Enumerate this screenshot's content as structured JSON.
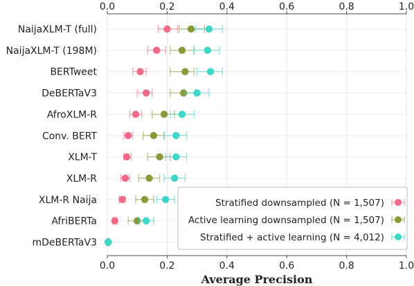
{
  "chart_data": {
    "type": "scatter",
    "xlabel": "Average Precision",
    "xlim": [
      0,
      1.0
    ],
    "xticks": [
      "0.0",
      "0.2",
      "0.4",
      "0.6",
      "0.8",
      "1.0"
    ],
    "grid": true,
    "legend_position": "bottom-right",
    "categories": [
      "NaijaXLM-T (full)",
      "NaijaXLM-T (198M)",
      "BERTweet",
      "DeBERTaV3",
      "AfroXLM-R",
      "Conv. BERT",
      "XLM-T",
      "XLM-R",
      "XLM-R Naija",
      "AfriBERTa",
      "mDeBERTaV3"
    ],
    "series": [
      {
        "name": "Stratified downsampled (N = 1,507)",
        "color": "#ee6a86",
        "values": [
          0.2,
          0.165,
          0.11,
          0.13,
          0.095,
          0.07,
          0.065,
          0.06,
          0.05,
          0.025,
          0.003
        ],
        "err_low": [
          0.17,
          0.135,
          0.085,
          0.1,
          0.075,
          0.055,
          0.055,
          0.045,
          0.04,
          0.018,
          0.0
        ],
        "err_high": [
          0.235,
          0.195,
          0.13,
          0.15,
          0.115,
          0.085,
          0.08,
          0.075,
          0.06,
          0.032,
          0.006
        ]
      },
      {
        "name": "Active learning downsampled (N = 1,507)",
        "color": "#8a9a3b",
        "values": [
          0.28,
          0.25,
          0.26,
          0.255,
          0.19,
          0.155,
          0.175,
          0.14,
          0.125,
          0.1,
          0.003
        ],
        "err_low": [
          0.24,
          0.21,
          0.21,
          0.21,
          0.15,
          0.12,
          0.135,
          0.105,
          0.095,
          0.07,
          0.0
        ],
        "err_high": [
          0.325,
          0.29,
          0.29,
          0.295,
          0.225,
          0.19,
          0.21,
          0.175,
          0.155,
          0.13,
          0.006
        ]
      },
      {
        "name": "Stratified + active learning (N = 4,012)",
        "color": "#3dd6c9",
        "values": [
          0.34,
          0.335,
          0.345,
          0.3,
          0.25,
          0.23,
          0.23,
          0.225,
          0.195,
          0.13,
          0.003
        ],
        "err_low": [
          0.295,
          0.29,
          0.3,
          0.26,
          0.21,
          0.19,
          0.195,
          0.19,
          0.165,
          0.105,
          0.0
        ],
        "err_high": [
          0.385,
          0.375,
          0.385,
          0.34,
          0.29,
          0.265,
          0.265,
          0.26,
          0.225,
          0.155,
          0.006
        ]
      }
    ]
  }
}
